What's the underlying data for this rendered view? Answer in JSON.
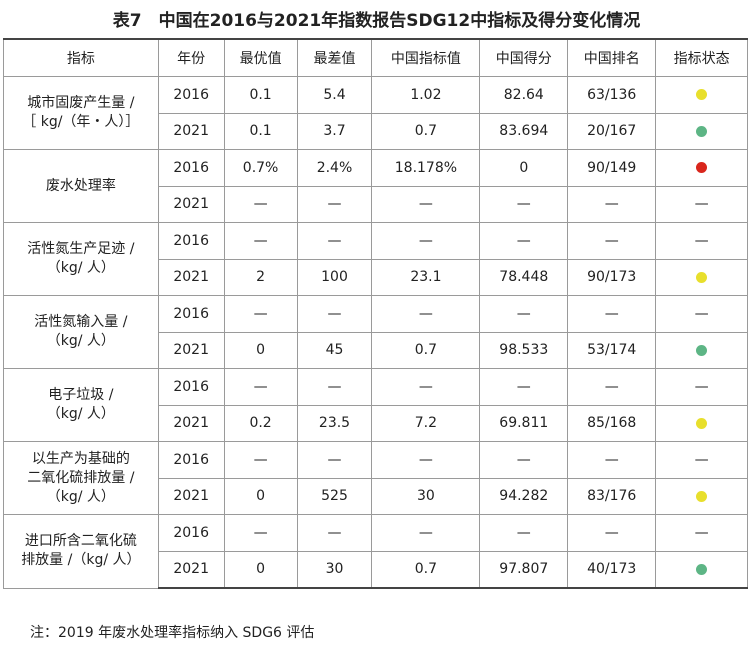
{
  "title": "表7　中国在2016与2021年指数报告SDG12中指标及得分变化情况",
  "table": {
    "header": [
      "指标",
      "年份",
      "最优值",
      "最差值",
      "中国指标值",
      "中国得分",
      "中国排名",
      "指标状态"
    ],
    "groups": [
      {
        "indicator": [
          "城市固废产生量 /",
          "［ kg/（年・人）］"
        ],
        "rows": [
          {
            "cells": [
              "2016",
              "0.1",
              "5.4",
              "1.02",
              "82.64",
              "63/136"
            ],
            "status": "#e8df2c"
          },
          {
            "cells": [
              "2021",
              "0.1",
              "3.7",
              "0.7",
              "83.694",
              "20/167"
            ],
            "status": "#5db585"
          }
        ]
      },
      {
        "indicator": [
          "废水处理率"
        ],
        "rows": [
          {
            "cells": [
              "2016",
              "0.7%",
              "2.4%",
              "18.178%",
              "0",
              "90/149"
            ],
            "status": "#d9261c"
          },
          {
            "cells": [
              "2021",
              "—",
              "—",
              "—",
              "—",
              "—"
            ],
            "status": "—"
          }
        ]
      },
      {
        "indicator": [
          "活性氮生产足迹 /",
          "（kg/ 人）"
        ],
        "rows": [
          {
            "cells": [
              "2016",
              "—",
              "—",
              "—",
              "—",
              "—"
            ],
            "status": "—"
          },
          {
            "cells": [
              "2021",
              "2",
              "100",
              "23.1",
              "78.448",
              "90/173"
            ],
            "status": "#e8df2c"
          }
        ]
      },
      {
        "indicator": [
          "活性氮输入量 /",
          "（kg/ 人）"
        ],
        "rows": [
          {
            "cells": [
              "2016",
              "—",
              "—",
              "—",
              "—",
              "—"
            ],
            "status": "—"
          },
          {
            "cells": [
              "2021",
              "0",
              "45",
              "0.7",
              "98.533",
              "53/174"
            ],
            "status": "#5db585"
          }
        ]
      },
      {
        "indicator": [
          "电子垃圾 /",
          "（kg/ 人）"
        ],
        "rows": [
          {
            "cells": [
              "2016",
              "—",
              "—",
              "—",
              "—",
              "—"
            ],
            "status": "—"
          },
          {
            "cells": [
              "2021",
              "0.2",
              "23.5",
              "7.2",
              "69.811",
              "85/168"
            ],
            "status": "#e8df2c"
          }
        ]
      },
      {
        "indicator": [
          "以生产为基础的",
          "二氧化硫排放量 /",
          "（kg/ 人）"
        ],
        "rows": [
          {
            "cells": [
              "2016",
              "—",
              "—",
              "—",
              "—",
              "—"
            ],
            "status": "—"
          },
          {
            "cells": [
              "2021",
              "0",
              "525",
              "30",
              "94.282",
              "83/176"
            ],
            "status": "#e8df2c"
          }
        ]
      },
      {
        "indicator": [
          "进口所含二氧化硫",
          "排放量 /（kg/ 人）"
        ],
        "rows": [
          {
            "cells": [
              "2016",
              "—",
              "—",
              "—",
              "—",
              "—"
            ],
            "status": "—"
          },
          {
            "cells": [
              "2021",
              "0",
              "30",
              "0.7",
              "97.807",
              "40/173"
            ],
            "status": "#5db585"
          }
        ]
      }
    ]
  },
  "note": "注：2019 年废水处理率指标纳入 SDG6 评估"
}
